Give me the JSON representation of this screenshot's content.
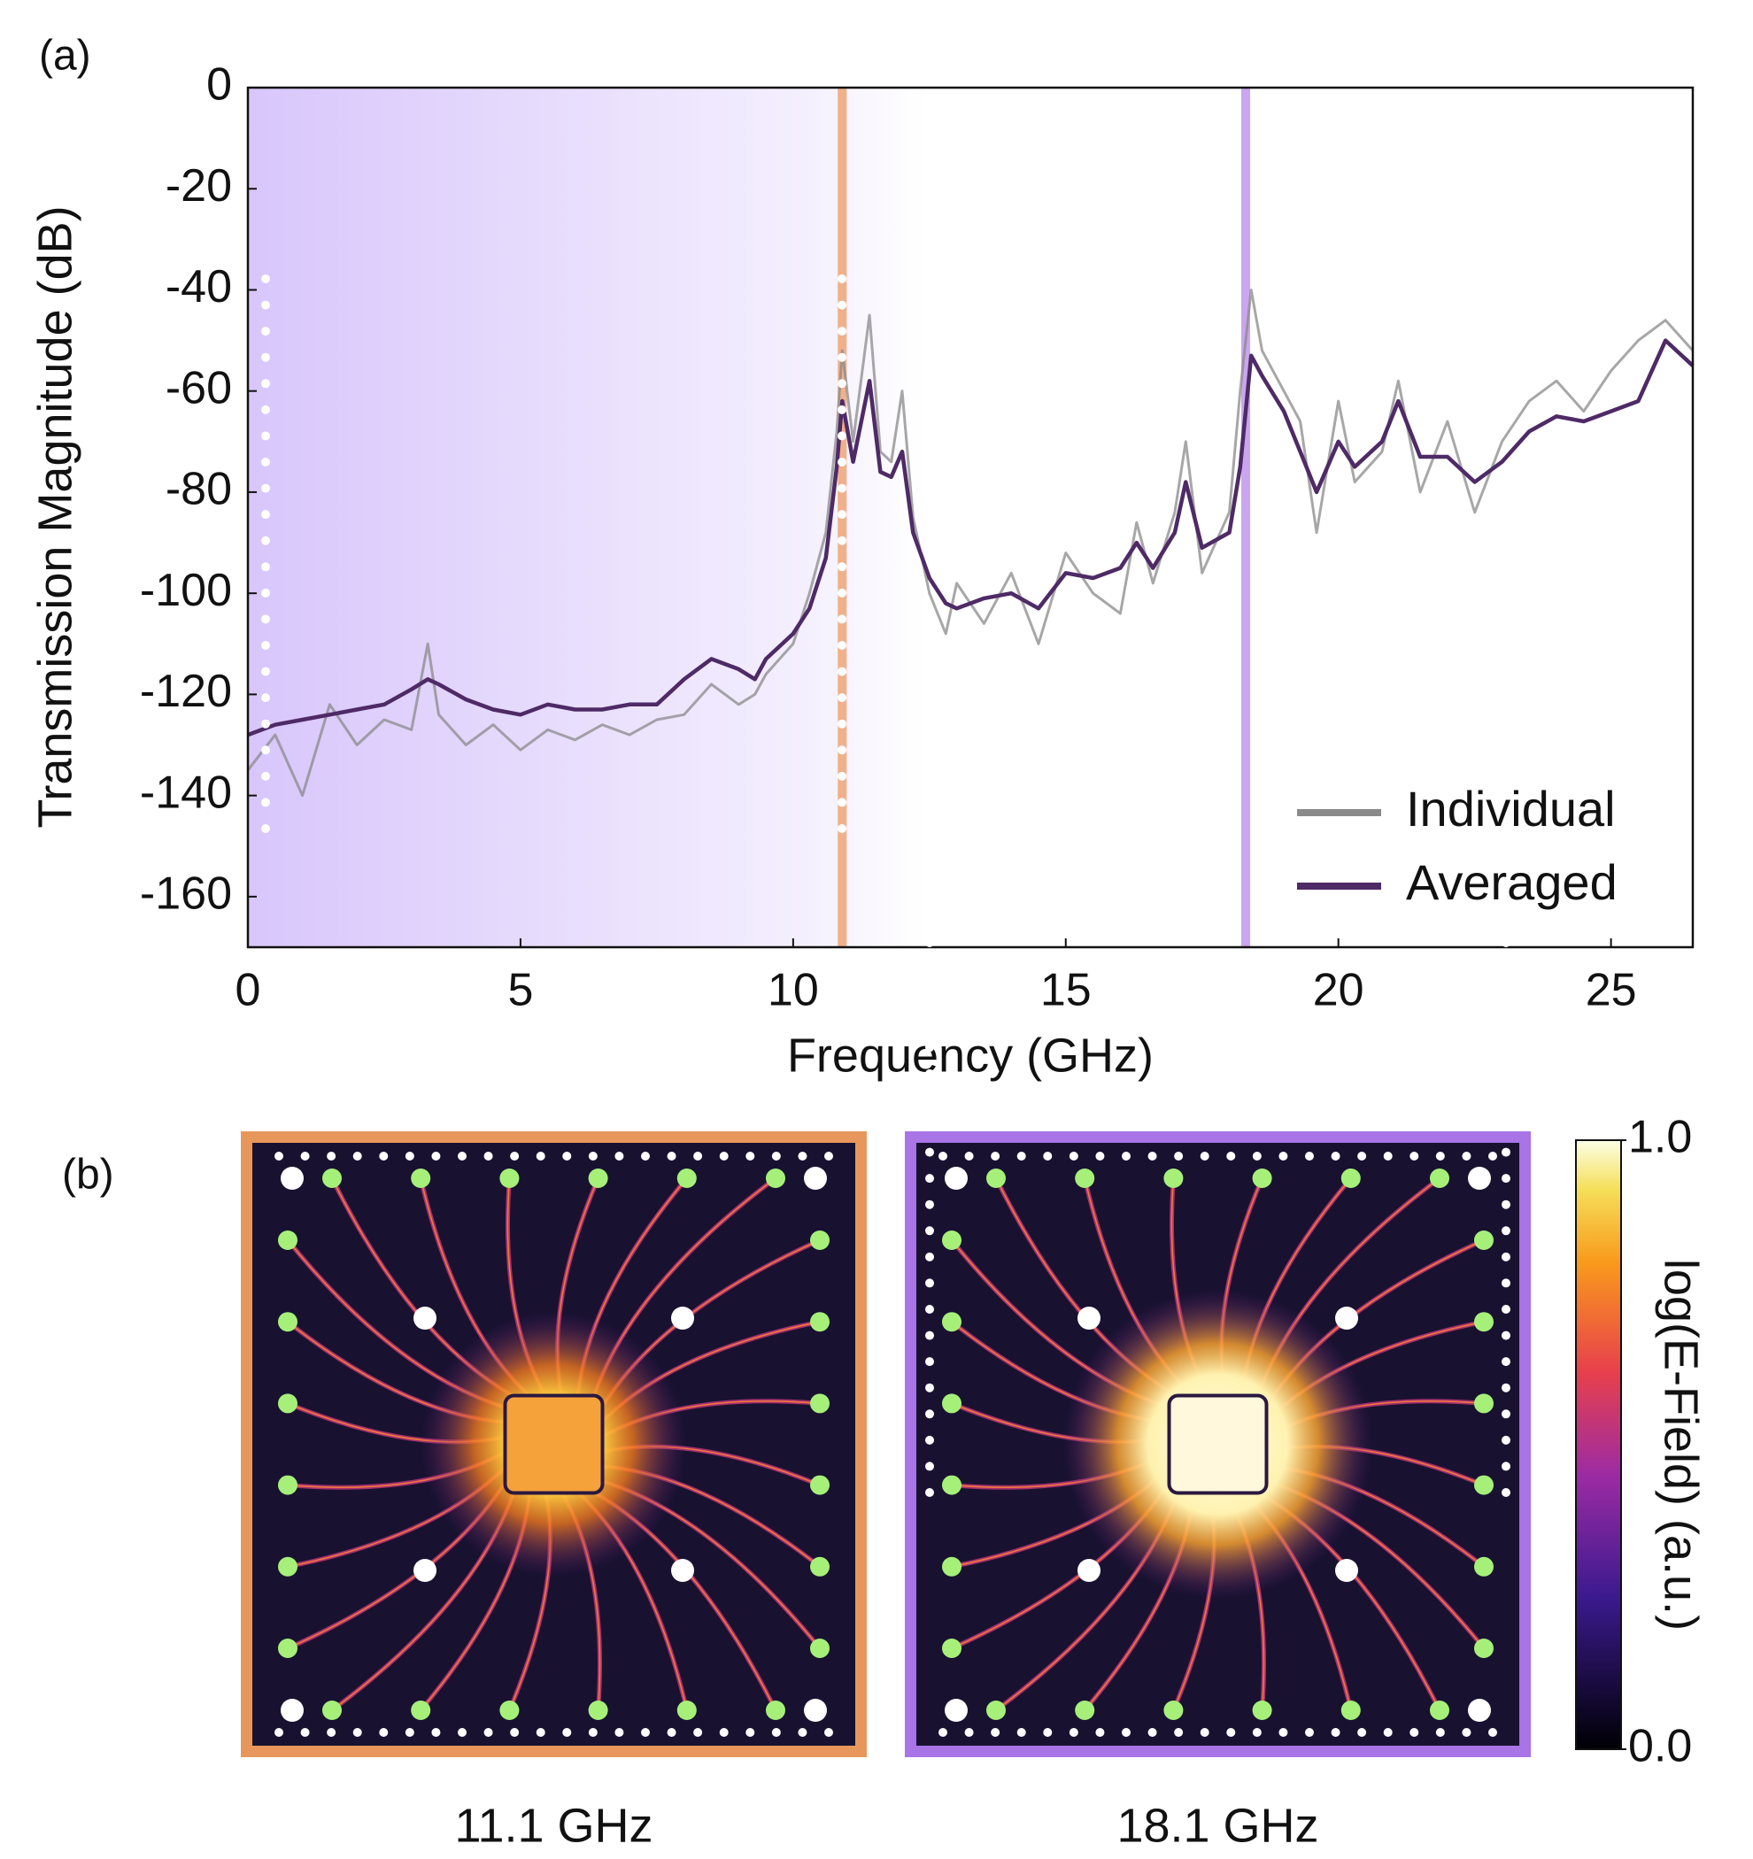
{
  "chart_data": {
    "type": "line",
    "panel_labels": [
      "(a)",
      "(b)"
    ],
    "x_label": "Frequency (GHz)",
    "y_label": "Transmission Magnitude (dB)",
    "xlim": [
      0,
      26.5
    ],
    "ylim": [
      -170,
      0
    ],
    "xticks": [
      0,
      5,
      10,
      15,
      20,
      25
    ],
    "yticks": [
      0,
      -20,
      -40,
      -60,
      -80,
      -100,
      -120,
      -140,
      -160
    ],
    "legend": "lower right",
    "markers": [
      {
        "x": 10.9,
        "color": "#f0b08a"
      },
      {
        "x": 18.3,
        "color": "#c9a6ee"
      }
    ],
    "x": [
      0,
      0.5,
      1,
      1.5,
      2,
      2.5,
      3,
      3.3,
      3.5,
      4,
      4.5,
      5,
      5.5,
      6,
      6.5,
      7,
      7.5,
      8,
      8.5,
      9,
      9.3,
      9.5,
      10,
      10.3,
      10.6,
      10.8,
      10.9,
      11.1,
      11.4,
      11.6,
      11.8,
      12.0,
      12.2,
      12.5,
      12.8,
      13,
      13.5,
      14,
      14.5,
      15,
      15.5,
      16,
      16.3,
      16.6,
      17,
      17.2,
      17.5,
      18,
      18.2,
      18.4,
      18.6,
      19,
      19.3,
      19.6,
      20,
      20.3,
      20.8,
      21.1,
      21.5,
      22,
      22.5,
      23,
      23.5,
      24,
      24.5,
      25,
      25.5,
      26,
      26.5
    ],
    "series": [
      {
        "name": "Individual",
        "color": "#8a8a8a",
        "values": [
          -135,
          -128,
          -140,
          -122,
          -130,
          -125,
          -127,
          -110,
          -124,
          -130,
          -126,
          -131,
          -127,
          -129,
          -126,
          -128,
          -125,
          -124,
          -118,
          -122,
          -120,
          -116,
          -110,
          -100,
          -88,
          -68,
          -52,
          -70,
          -45,
          -72,
          -74,
          -60,
          -85,
          -100,
          -108,
          -98,
          -106,
          -96,
          -110,
          -92,
          -100,
          -104,
          -86,
          -98,
          -84,
          -70,
          -96,
          -84,
          -60,
          -40,
          -52,
          -60,
          -66,
          -88,
          -62,
          -78,
          -72,
          -58,
          -80,
          -66,
          -84,
          -70,
          -62,
          -58,
          -64,
          -56,
          -50,
          -46,
          -52
        ]
      },
      {
        "name": "Averaged",
        "color": "#4e2a66",
        "values": [
          -128,
          -126,
          -125,
          -124,
          -123,
          -122,
          -119,
          -117,
          -118,
          -121,
          -123,
          -124,
          -122,
          -123,
          -123,
          -122,
          -122,
          -117,
          -113,
          -115,
          -117,
          -113,
          -108,
          -103,
          -93,
          -75,
          -62,
          -74,
          -58,
          -76,
          -77,
          -72,
          -88,
          -97,
          -102,
          -103,
          -101,
          -100,
          -103,
          -96,
          -97,
          -95,
          -90,
          -95,
          -88,
          -78,
          -91,
          -88,
          -75,
          -53,
          -57,
          -64,
          -72,
          -80,
          -70,
          -75,
          -70,
          -62,
          -73,
          -73,
          -78,
          -74,
          -68,
          -65,
          -66,
          -64,
          -62,
          -50,
          -55
        ]
      }
    ],
    "field_maps": [
      {
        "caption": "11.1 GHz",
        "color": "#e8975c"
      },
      {
        "caption": "18.1 GHz",
        "color": "#a874e6"
      }
    ],
    "colorbar": {
      "label": "log(E-Field) (a.u.)",
      "lim": [
        0,
        1
      ],
      "ticks": [
        {
          "value": 1,
          "label": "1.0"
        },
        {
          "value": 0,
          "label": "0.0"
        }
      ]
    }
  }
}
